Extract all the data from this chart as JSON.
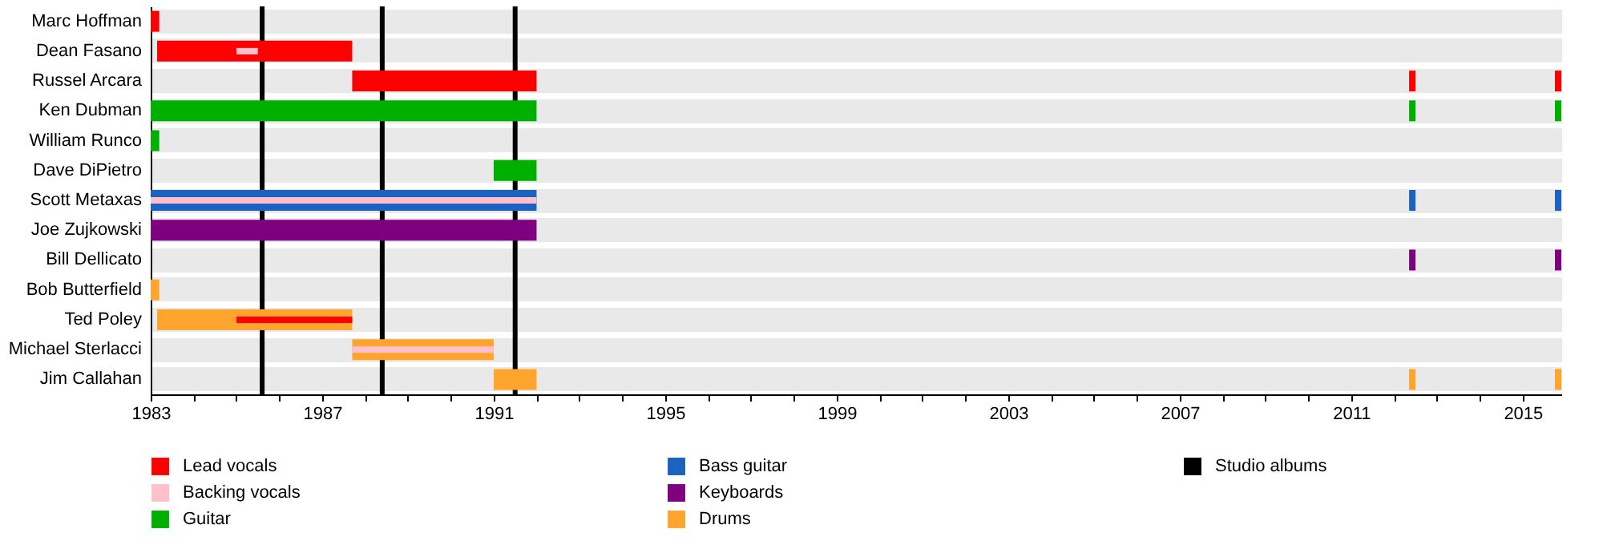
{
  "chart_data": {
    "type": "bar",
    "orientation": "horizontal",
    "categories": [
      "Marc Hoffman",
      "Dean Fasano",
      "Russel Arcara",
      "Ken Dubman",
      "William Runco",
      "Dave DiPietro",
      "Scott Metaxas",
      "Joe Zujkowski",
      "Bill Dellicato",
      "Bob Butterfield",
      "Ted Poley",
      "Michael Sterlacci",
      "Jim Callahan"
    ],
    "series": [
      {
        "name": "Lead vocals",
        "color": "#ff0000",
        "values": [
          0.2,
          4.55,
          4.3,
          null,
          null,
          null,
          null,
          null,
          null,
          null,
          2.7,
          null,
          null
        ],
        "base": [
          1983,
          1983.15,
          1987.7,
          null,
          null,
          null,
          null,
          null,
          null,
          null,
          1985,
          null,
          null
        ]
      },
      {
        "name": "Backing vocals",
        "color": "#ffc0cb",
        "values": [
          null,
          0.5,
          null,
          null,
          null,
          null,
          9,
          null,
          null,
          null,
          null,
          3.3,
          null
        ],
        "base": [
          null,
          1985,
          null,
          null,
          null,
          null,
          1983,
          null,
          null,
          null,
          null,
          1987.7,
          null
        ]
      },
      {
        "name": "Guitar",
        "color": "#00b000",
        "values": [
          null,
          null,
          null,
          9,
          0.2,
          1,
          null,
          null,
          null,
          null,
          null,
          null,
          null
        ],
        "base": [
          null,
          null,
          null,
          1983,
          1983,
          1991,
          null,
          null,
          null,
          null,
          null,
          null,
          null
        ]
      },
      {
        "name": "Bass guitar",
        "color": "#1a63c0",
        "values": [
          null,
          null,
          null,
          null,
          null,
          null,
          9,
          null,
          null,
          null,
          null,
          null,
          null
        ],
        "base": [
          null,
          null,
          null,
          null,
          null,
          null,
          1983,
          null,
          null,
          null,
          null,
          null,
          null
        ]
      },
      {
        "name": "Keyboards",
        "color": "#7f007f",
        "values": [
          null,
          null,
          null,
          null,
          null,
          null,
          null,
          9,
          null,
          null,
          null,
          null,
          null
        ],
        "base": [
          null,
          null,
          null,
          null,
          null,
          null,
          null,
          1983,
          null,
          null,
          null,
          null,
          null
        ]
      },
      {
        "name": "Drums",
        "color": "#ffa42c",
        "values": [
          null,
          null,
          null,
          null,
          null,
          null,
          null,
          null,
          null,
          0.2,
          4.55,
          3.3,
          1
        ],
        "base": [
          null,
          null,
          null,
          null,
          null,
          null,
          null,
          null,
          null,
          1983,
          1983.15,
          1987.7,
          1991
        ]
      },
      {
        "colors": [
          null,
          null,
          "#ff0000",
          "#00b000",
          null,
          null,
          "#1a63c0",
          null,
          "#7f007f",
          null,
          null,
          null,
          "#ffa42c"
        ],
        "values": [
          null,
          null,
          0.15,
          0.15,
          null,
          null,
          0.15,
          null,
          0.15,
          null,
          null,
          null,
          0.15
        ],
        "base": [
          null,
          null,
          2012.35,
          2012.35,
          null,
          null,
          2012.35,
          null,
          2012.35,
          null,
          null,
          null,
          2012.35
        ]
      },
      {
        "colors": [
          null,
          null,
          "#ff0000",
          "#00b000",
          null,
          null,
          "#1a63c0",
          null,
          "#7f007f",
          null,
          null,
          null,
          "#ffa42c"
        ],
        "values": [
          null,
          null,
          0.15,
          0.15,
          null,
          null,
          0.15,
          null,
          0.15,
          null,
          null,
          null,
          0.15
        ],
        "base": [
          null,
          null,
          2015.75,
          2015.75,
          null,
          null,
          2015.75,
          null,
          2015.75,
          null,
          null,
          null,
          2015.75
        ]
      }
    ],
    "xlim": [
      1983,
      2015.9
    ],
    "xticks": [
      1983,
      {
        "value": 1984,
        "label": null
      },
      {
        "value": 1985,
        "label": null
      },
      {
        "value": 1986,
        "label": null
      },
      1987,
      {
        "value": 1988,
        "label": null
      },
      {
        "value": 1989,
        "label": null
      },
      {
        "value": 1990,
        "label": null
      },
      1991,
      {
        "value": 1992,
        "label": null
      },
      {
        "value": 1993,
        "label": null
      },
      {
        "value": 1994,
        "label": null
      },
      1995,
      {
        "value": 1996,
        "label": null
      },
      {
        "value": 1997,
        "label": null
      },
      {
        "value": 1998,
        "label": null
      },
      1999,
      {
        "value": 2000,
        "label": null
      },
      {
        "value": 2001,
        "label": null
      },
      {
        "value": 2002,
        "label": null
      },
      2003,
      {
        "value": 2004,
        "label": null
      },
      {
        "value": 2005,
        "label": null
      },
      {
        "value": 2006,
        "label": null
      },
      2007,
      {
        "value": 2008,
        "label": null
      },
      {
        "value": 2009,
        "label": null
      },
      {
        "value": 2010,
        "label": null
      },
      2011,
      {
        "value": 2012,
        "label": null
      },
      {
        "value": 2013,
        "label": null
      },
      {
        "value": 2014,
        "label": null
      },
      2015
    ],
    "ref_lines": [
      {
        "axis": "x",
        "value": 1985.6,
        "label": "Studio albums",
        "color": "#000000"
      },
      {
        "axis": "x",
        "value": 1988.4,
        "color": "#000000"
      },
      {
        "axis": "x",
        "value": 1991.5,
        "color": "#000000"
      }
    ],
    "grid": "y",
    "legend": "bottom"
  }
}
